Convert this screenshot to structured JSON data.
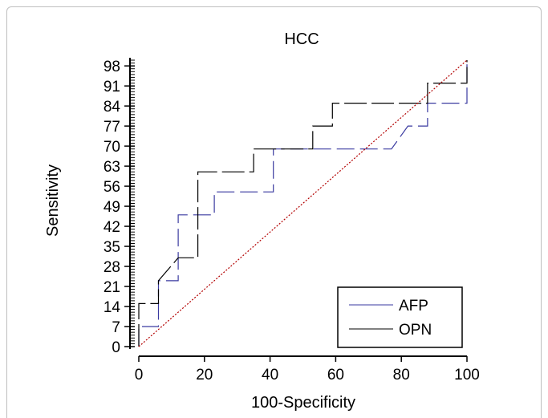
{
  "chart_data": {
    "type": "line",
    "title": "HCC",
    "xlabel": "100-Specificity",
    "ylabel": "Sensitivity",
    "xlim": [
      0,
      100
    ],
    "ylim": [
      0,
      100
    ],
    "x_ticks": [
      "0",
      "20",
      "40",
      "60",
      "80",
      "100"
    ],
    "y_ticks": [
      "0",
      "7",
      "14",
      "21",
      "28",
      "35",
      "42",
      "49",
      "56",
      "63",
      "70",
      "77",
      "84",
      "91",
      "98"
    ],
    "legend": {
      "placement": "bottom-right"
    },
    "series": [
      {
        "name": "AFP",
        "color": "#3a3aa0",
        "dash": "dashed",
        "points": [
          [
            0,
            0
          ],
          [
            0,
            7
          ],
          [
            6,
            7
          ],
          [
            6,
            23
          ],
          [
            12,
            23
          ],
          [
            12,
            46
          ],
          [
            23,
            46
          ],
          [
            23,
            54
          ],
          [
            41,
            54
          ],
          [
            41,
            69
          ],
          [
            77,
            69
          ],
          [
            82,
            77
          ],
          [
            88,
            77
          ],
          [
            88,
            85
          ],
          [
            100,
            85
          ],
          [
            100,
            100
          ]
        ]
      },
      {
        "name": "OPN",
        "color": "#000000",
        "dash": "long-dashed",
        "points": [
          [
            0,
            0
          ],
          [
            0,
            15
          ],
          [
            6,
            15
          ],
          [
            6,
            23
          ],
          [
            12,
            31
          ],
          [
            18,
            31
          ],
          [
            18,
            61
          ],
          [
            35,
            61
          ],
          [
            35,
            69
          ],
          [
            53,
            69
          ],
          [
            53,
            77
          ],
          [
            59,
            77
          ],
          [
            59,
            85
          ],
          [
            88,
            85
          ],
          [
            88,
            92
          ],
          [
            100,
            92
          ],
          [
            100,
            100
          ]
        ]
      },
      {
        "name": "",
        "color": "#b30000",
        "dash": "dotted",
        "points": [
          [
            0,
            0
          ],
          [
            100,
            100
          ]
        ]
      }
    ]
  }
}
